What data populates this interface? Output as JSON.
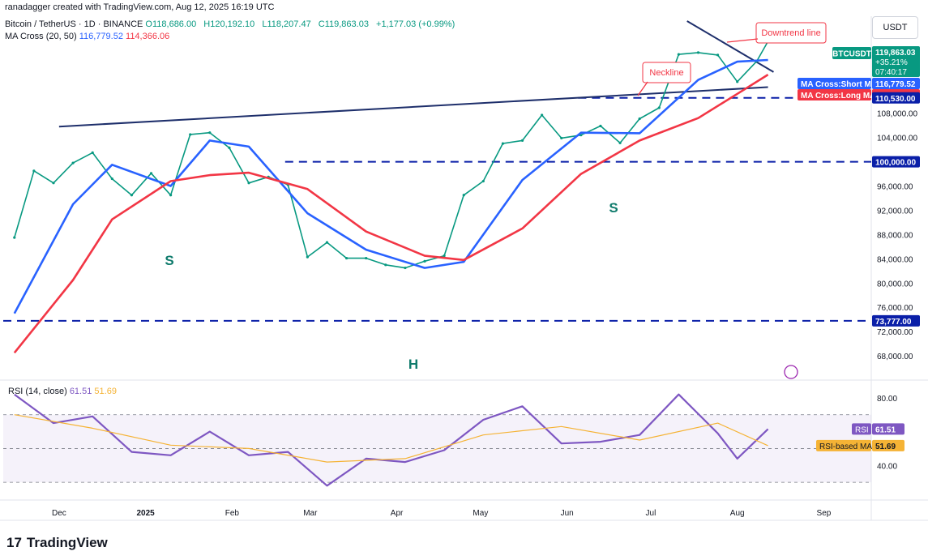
{
  "header": {
    "creator_line": "ranadagger created with TradingView.com, Aug 12, 2025 16:19 UTC",
    "symbol": "Bitcoin / TetherUS · 1D · BINANCE",
    "ohlc": {
      "O": "O118,686.00",
      "H": "H120,192.10",
      "L": "L118,207.47",
      "C": "C119,863.03",
      "chg": "+1,177.03 (+0.99%)"
    },
    "ma_label": "MA Cross (20, 50)",
    "ma_short": "116,779.52",
    "ma_long": "114,366.06",
    "unit": "USDT"
  },
  "footer": {
    "brand": "TradingView",
    "logo": "17"
  },
  "chart_data": [
    {
      "type": "line",
      "title": "Bitcoin / TetherUS · 1D · BINANCE",
      "ylabel": "USDT",
      "ylim": [
        64000,
        124000
      ],
      "grid": false,
      "yticks": [
        "68,000.00",
        "72,000.00",
        "76,000.00",
        "80,000.00",
        "84,000.00",
        "88,000.00",
        "92,000.00",
        "96,000.00",
        "100,000.00",
        "104,000.00",
        "108,000.00"
      ],
      "xticks": [
        "Dec",
        "2025",
        "Feb",
        "Mar",
        "Apr",
        "May",
        "Jun",
        "Jul",
        "Aug",
        "Sep"
      ],
      "series": [
        {
          "name": "BTCUSDT",
          "color": "#089981",
          "x": [
            "2024-11-15",
            "2024-11-22",
            "2024-11-29",
            "2024-12-06",
            "2024-12-13",
            "2024-12-20",
            "2024-12-27",
            "2025-01-03",
            "2025-01-10",
            "2025-01-17",
            "2025-01-24",
            "2025-01-31",
            "2025-02-07",
            "2025-02-14",
            "2025-02-21",
            "2025-02-28",
            "2025-03-07",
            "2025-03-14",
            "2025-03-21",
            "2025-03-28",
            "2025-04-04",
            "2025-04-11",
            "2025-04-18",
            "2025-04-25",
            "2025-05-02",
            "2025-05-09",
            "2025-05-16",
            "2025-05-23",
            "2025-05-30",
            "2025-06-06",
            "2025-06-13",
            "2025-06-20",
            "2025-06-27",
            "2025-07-04",
            "2025-07-11",
            "2025-07-18",
            "2025-07-25",
            "2025-08-01",
            "2025-08-08",
            "2025-08-12"
          ],
          "values": [
            87500,
            98500,
            96500,
            99800,
            101500,
            97200,
            94500,
            98100,
            94500,
            104500,
            104800,
            102300,
            96500,
            97500,
            96200,
            84300,
            86700,
            84100,
            84100,
            83000,
            82500,
            83600,
            84500,
            94500,
            96800,
            103000,
            103500,
            107700,
            103900,
            104400,
            105900,
            103100,
            107100,
            108900,
            117700,
            118000,
            117600,
            113200,
            116600,
            119863
          ]
        },
        {
          "name": "MA Cross:Short MA",
          "color": "#2962ff",
          "x": [
            "2024-11-15",
            "2024-12-06",
            "2024-12-20",
            "2025-01-10",
            "2025-01-24",
            "2025-02-07",
            "2025-02-28",
            "2025-03-21",
            "2025-04-11",
            "2025-04-25",
            "2025-05-16",
            "2025-06-06",
            "2025-06-27",
            "2025-07-18",
            "2025-08-01",
            "2025-08-12"
          ],
          "values": [
            75000,
            93000,
            99500,
            96000,
            103500,
            102500,
            91500,
            85500,
            82500,
            83500,
            97000,
            104800,
            104700,
            113500,
            116500,
            116779.52
          ]
        },
        {
          "name": "MA Cross:Long MA",
          "color": "#f23645",
          "x": [
            "2024-11-15",
            "2024-12-06",
            "2024-12-20",
            "2025-01-10",
            "2025-01-24",
            "2025-02-07",
            "2025-02-28",
            "2025-03-21",
            "2025-04-11",
            "2025-04-25",
            "2025-05-16",
            "2025-06-06",
            "2025-06-27",
            "2025-07-18",
            "2025-08-01",
            "2025-08-12"
          ],
          "values": [
            68500,
            80500,
            90500,
            96800,
            97800,
            98200,
            95500,
            88500,
            84500,
            83800,
            89000,
            98000,
            103500,
            107200,
            111200,
            114366.06
          ]
        }
      ],
      "levels": [
        {
          "label": "110,530.00",
          "value": 110530
        },
        {
          "label": "100,000.00",
          "value": 100000
        },
        {
          "label": "73,777.00",
          "value": 73777
        }
      ],
      "price_tag": {
        "symbol": "BTCUSDT",
        "price": "119,863.03",
        "change": "+35.21%",
        "countdown": "07:40:17"
      },
      "ma_tags": [
        {
          "label": "MA Cross:Short MA",
          "value": "116,779.52"
        },
        {
          "label": "MA Cross:Long MA",
          "value": "114,366.06"
        }
      ],
      "annotations": [
        {
          "text": "Downtrend line"
        },
        {
          "text": "Neckline"
        },
        {
          "text": "S",
          "where": "left shoulder"
        },
        {
          "text": "H",
          "where": "head"
        },
        {
          "text": "S",
          "where": "right shoulder"
        }
      ]
    },
    {
      "type": "line",
      "title": "RSI (14, close)",
      "legend_values": [
        "61.51",
        "51.69"
      ],
      "ylim": [
        20,
        90
      ],
      "grid": false,
      "yticks": [
        "80.00",
        "40.00"
      ],
      "series": [
        {
          "name": "RSI",
          "color": "#7e57c2",
          "x": [
            "2024-11-15",
            "2024-11-29",
            "2024-12-13",
            "2024-12-27",
            "2025-01-10",
            "2025-01-24",
            "2025-02-07",
            "2025-02-21",
            "2025-03-07",
            "2025-03-21",
            "2025-04-04",
            "2025-04-18",
            "2025-05-02",
            "2025-05-16",
            "2025-05-30",
            "2025-06-13",
            "2025-06-27",
            "2025-07-11",
            "2025-07-25",
            "2025-08-01",
            "2025-08-12"
          ],
          "values": [
            82,
            65,
            69,
            48,
            46,
            60,
            46,
            48,
            28,
            44,
            42,
            49,
            67,
            75,
            53,
            54,
            58,
            82,
            59,
            44,
            61.51
          ]
        },
        {
          "name": "RSI-based MA",
          "color": "#f5b335",
          "x": [
            "2024-11-15",
            "2024-12-13",
            "2025-01-10",
            "2025-02-07",
            "2025-03-07",
            "2025-04-04",
            "2025-05-02",
            "2025-05-30",
            "2025-06-27",
            "2025-07-25",
            "2025-08-12"
          ],
          "values": [
            70,
            62,
            52,
            50,
            42,
            44,
            58,
            63,
            55,
            65,
            51.69
          ]
        }
      ],
      "tags": [
        {
          "label": "RSI",
          "value": "61.51"
        },
        {
          "label": "RSI-based MA",
          "value": "51.69"
        }
      ]
    }
  ]
}
